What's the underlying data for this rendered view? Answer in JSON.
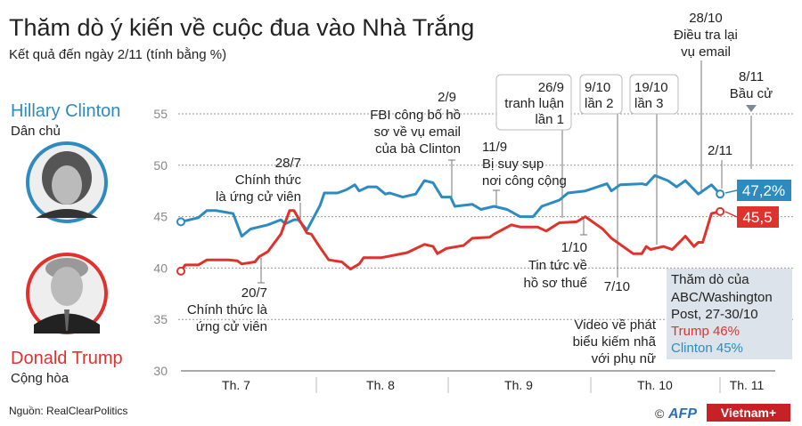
{
  "title": "Thăm dò ý kiến về cuộc đua vào Nhà Trắng",
  "subtitle": "Kết quả đến ngày 2/11 (tính bằng %)",
  "candidates": {
    "clinton": {
      "name": "Hillary Clinton",
      "party": "Dân chủ",
      "color": "#2e8bc0"
    },
    "trump": {
      "name": "Donald Trump",
      "party": "Cộng hòa",
      "color": "#e0322c"
    }
  },
  "annotations": {
    "a_28_7": [
      "28/7",
      "Chính thức",
      "là ứng cử viên"
    ],
    "a_20_7": [
      "20/7",
      "Chính thức là",
      "ứng cử viên"
    ],
    "a_2_9": [
      "2/9",
      "FBI công bố hồ",
      "sơ về vụ email",
      "của bà Clinton"
    ],
    "a_11_9": [
      "11/9",
      "Bị suy sụp",
      "nơi công cộng"
    ],
    "a_26_9": [
      "26/9",
      "tranh luận",
      "lần 1"
    ],
    "a_9_10": [
      "9/10",
      "lần 2"
    ],
    "a_19_10": [
      "19/10",
      "lần 3"
    ],
    "a_28_10": [
      "28/10",
      "Điều tra lại",
      "vụ email"
    ],
    "a_8_11": [
      "8/11",
      "Bầu cử"
    ],
    "a_2_11": [
      "2/11"
    ],
    "a_1_10": [
      "1/10",
      "Tin tức về",
      "hồ sơ thuế"
    ],
    "a_7_10": [
      "7/10",
      "Video về phát",
      "biểu kiếm nhã",
      "với phụ nữ"
    ]
  },
  "end_labels": {
    "clinton": "47,2%",
    "trump": "45,5"
  },
  "legend_box": {
    "lines": [
      "Thăm dò của",
      "ABC/Washington",
      "Post,  27-30/10"
    ],
    "trump": "Trump  46%",
    "clinton": "Clinton 45%",
    "background": "#dde3ea"
  },
  "source": "Nguồn: RealClearPolitics",
  "credits": {
    "copyright": "©",
    "afp": "AFP",
    "vietnam": "Vietnam+"
  },
  "chart_data": {
    "type": "line",
    "title": "Thăm dò ý kiến về cuộc đua vào Nhà Trắng",
    "subtitle": "Kết quả đến ngày 2/11 (tính bằng %)",
    "ylim": [
      30,
      55
    ],
    "yticks": [
      30,
      35,
      40,
      45,
      50,
      55
    ],
    "xlim": [
      "1/7",
      "8/11"
    ],
    "month_labels": [
      "Th. 7",
      "Th. 8",
      "Th. 9",
      "Th. 10",
      "Th. 11"
    ],
    "grid": "horizontal dotted",
    "series": [
      {
        "name": "Hillary Clinton",
        "color": "#2e8bc0",
        "points": [
          [
            "1/7",
            44.5
          ],
          [
            "5/7",
            44.9
          ],
          [
            "7/7",
            45.6
          ],
          [
            "9/7",
            45.6
          ],
          [
            "13/7",
            45.3
          ],
          [
            "15/7",
            43.1
          ],
          [
            "17/7",
            43.8
          ],
          [
            "21/7",
            44.2
          ],
          [
            "24/7",
            44.7
          ],
          [
            "25/7",
            44.3
          ],
          [
            "27/7",
            44.7
          ],
          [
            "28/7",
            44.7
          ],
          [
            "30/7",
            43.7
          ],
          [
            "2/8",
            46.1
          ],
          [
            "3/8",
            47.3
          ],
          [
            "6/8",
            47.3
          ],
          [
            "8/8",
            47.6
          ],
          [
            "10/8",
            48.1
          ],
          [
            "11/8",
            47.5
          ],
          [
            "13/8",
            47.9
          ],
          [
            "15/8",
            47.9
          ],
          [
            "17/8",
            47.2
          ],
          [
            "18/8",
            47.3
          ],
          [
            "21/8",
            46.9
          ],
          [
            "24/8",
            47.2
          ],
          [
            "26/8",
            48.5
          ],
          [
            "28/8",
            48.3
          ],
          [
            "30/8",
            46.9
          ],
          [
            "1/9",
            46.9
          ],
          [
            "2/9",
            46.0
          ],
          [
            "6/9",
            46.2
          ],
          [
            "8/9",
            45.7
          ],
          [
            "11/9",
            46.0
          ],
          [
            "14/9",
            45.7
          ],
          [
            "17/9",
            45.0
          ],
          [
            "20/9",
            45.0
          ],
          [
            "22/9",
            46.0
          ],
          [
            "26/9",
            46.6
          ],
          [
            "28/9",
            47.3
          ],
          [
            "2/10",
            47.5
          ],
          [
            "7/10",
            48.2
          ],
          [
            "8/10",
            47.5
          ],
          [
            "10/10",
            48.1
          ],
          [
            "15/10",
            48.2
          ],
          [
            "16/10",
            48.1
          ],
          [
            "18/10",
            49.0
          ],
          [
            "21/10",
            48.5
          ],
          [
            "23/10",
            47.9
          ],
          [
            "25/10",
            48.5
          ],
          [
            "28/10",
            47.2
          ],
          [
            "31/10",
            48.1
          ],
          [
            "2/11",
            47.2
          ]
        ]
      },
      {
        "name": "Donald Trump",
        "color": "#e0322c",
        "points": [
          [
            "1/7",
            39.7
          ],
          [
            "2/7",
            40.3
          ],
          [
            "5/7",
            40.3
          ],
          [
            "7/7",
            40.8
          ],
          [
            "12/7",
            40.8
          ],
          [
            "14/7",
            40.7
          ],
          [
            "15/7",
            40.4
          ],
          [
            "18/7",
            40.6
          ],
          [
            "19/7",
            41.1
          ],
          [
            "21/7",
            41.6
          ],
          [
            "24/7",
            43.3
          ],
          [
            "26/7",
            45.6
          ],
          [
            "27/7",
            45.6
          ],
          [
            "30/7",
            43.4
          ],
          [
            "31/7",
            43.3
          ],
          [
            "2/8",
            42.0
          ],
          [
            "4/8",
            40.8
          ],
          [
            "7/8",
            40.6
          ],
          [
            "9/8",
            39.9
          ],
          [
            "11/8",
            40.4
          ],
          [
            "12/8",
            41.0
          ],
          [
            "16/8",
            41.0
          ],
          [
            "22/8",
            41.5
          ],
          [
            "26/8",
            42.3
          ],
          [
            "28/8",
            42.1
          ],
          [
            "29/8",
            41.4
          ],
          [
            "31/8",
            41.9
          ],
          [
            "4/9",
            42.2
          ],
          [
            "6/9",
            42.9
          ],
          [
            "10/9",
            43.0
          ],
          [
            "11/9",
            43.3
          ],
          [
            "15/9",
            44.2
          ],
          [
            "17/9",
            44.0
          ],
          [
            "21/9",
            44.0
          ],
          [
            "23/9",
            43.6
          ],
          [
            "26/9",
            44.4
          ],
          [
            "30/9",
            44.5
          ],
          [
            "2/10",
            45.0
          ],
          [
            "6/10",
            43.8
          ],
          [
            "8/10",
            42.9
          ],
          [
            "13/10",
            41.4
          ],
          [
            "15/10",
            41.4
          ],
          [
            "16/10",
            42.1
          ],
          [
            "17/10",
            41.8
          ],
          [
            "20/10",
            42.1
          ],
          [
            "22/10",
            41.8
          ],
          [
            "25/10",
            43.1
          ],
          [
            "27/10",
            42.1
          ],
          [
            "28/10",
            42.5
          ],
          [
            "29/10",
            42.5
          ],
          [
            "31/10",
            45.3
          ],
          [
            "2/11",
            45.5
          ]
        ]
      }
    ]
  }
}
